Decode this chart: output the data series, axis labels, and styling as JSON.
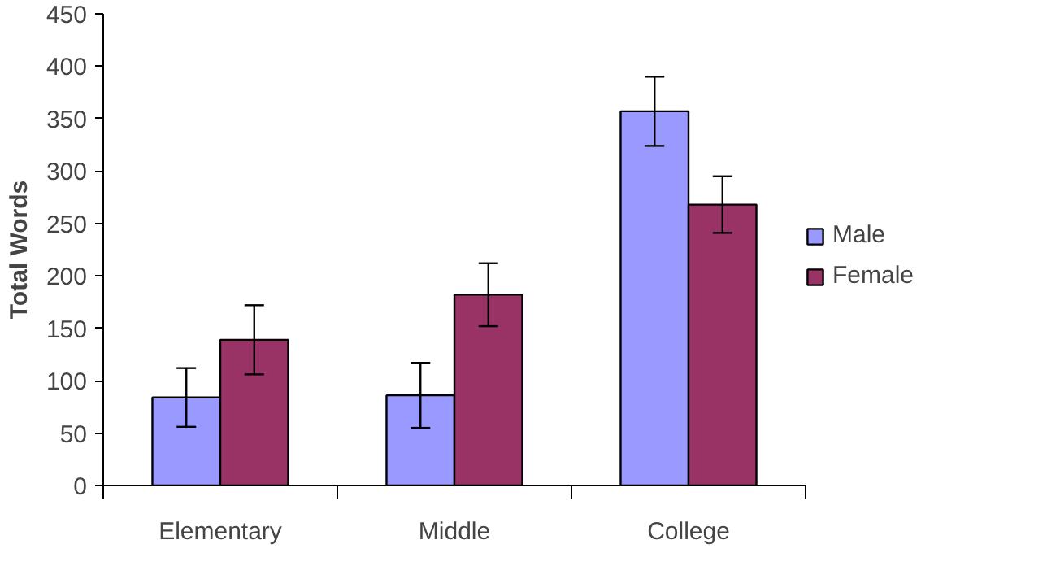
{
  "chart_data": {
    "type": "bar",
    "ylabel": "Total Words",
    "categories": [
      "Elementary",
      "Middle",
      "College"
    ],
    "series": [
      {
        "name": "Male",
        "color": "#9999ff",
        "values": [
          84,
          86,
          357
        ],
        "errors": [
          28,
          31,
          33
        ]
      },
      {
        "name": "Female",
        "color": "#993366",
        "values": [
          139,
          182,
          268
        ],
        "errors": [
          33,
          30,
          27
        ]
      }
    ],
    "ylim": [
      0,
      450
    ],
    "yticks": [
      0,
      50,
      100,
      150,
      200,
      250,
      300,
      350,
      400,
      450
    ],
    "grid": false,
    "legend": "right"
  }
}
